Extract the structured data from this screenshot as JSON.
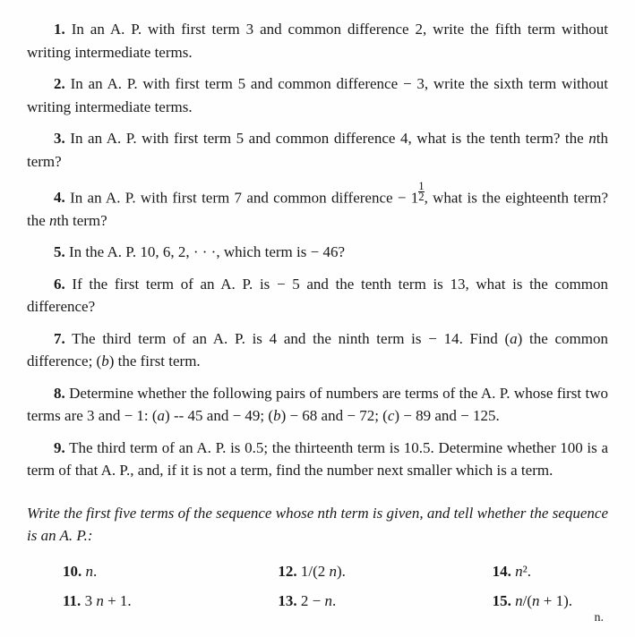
{
  "problems": {
    "p1": {
      "num": "1.",
      "text": "In an A. P. with first term 3 and common difference 2, write the fifth term without writing intermediate terms."
    },
    "p2": {
      "num": "2.",
      "text": "In an A. P. with first term 5 and common difference − 3, write the sixth term without writing intermediate terms."
    },
    "p3": {
      "num": "3.",
      "prefix": "In an A. P. with first term 5 and common difference 4, what is the tenth term?  the ",
      "nthword": "n",
      "suffix": "th term?"
    },
    "p4": {
      "num": "4.",
      "prefix": "In an A. P. with first term 7 and common difference − 1",
      "half_n": "1",
      "half_d": "2",
      "mid": ", what is the eighteenth term?  the ",
      "nthword": "n",
      "suffix": "th term?"
    },
    "p5": {
      "num": "5.",
      "text": "In the A. P. 10, 6, 2, · · ·, which term is − 46?"
    },
    "p6": {
      "num": "6.",
      "text": "If the first term of an A. P. is − 5 and the tenth term is 13, what is the common difference?"
    },
    "p7": {
      "num": "7.",
      "prefix": "The third term of an A. P. is 4 and the ninth term is − 14. Find (",
      "alab": "a",
      "mid": ") the common difference;  (",
      "blab": "b",
      "suffix": ") the first term."
    },
    "p8": {
      "num": "8.",
      "pre": "Determine whether the following pairs of numbers are terms of the A. P. whose first two terms are 3 and − 1:  (",
      "a": "a",
      "t1": ") -- 45 and − 49; (",
      "b": "b",
      "t2": ")  − 68 and − 72;  (",
      "c": "c",
      "t3": ")  − 89 and − 125."
    },
    "p9": {
      "num": "9.",
      "text": "The third term of an A. P. is 0.5;  the thirteenth term is 10.5. Determine whether 100 is a term of that A. P., and, if it is not a term, find the number next smaller which is a term."
    }
  },
  "instruction": {
    "pre": "Write the first five terms of the sequence whose ",
    "n": "n",
    "mid": "th term is given, and tell whether the sequence is an A. P.:"
  },
  "short": {
    "p10": {
      "num": "10.",
      "var": "n",
      "suffix": "."
    },
    "p11": {
      "num": "11.",
      "pre": "3 ",
      "var": "n",
      "suffix": " + 1."
    },
    "p12": {
      "num": "12.",
      "pre": "1/(2 ",
      "var": "n",
      "suffix": ")."
    },
    "p13": {
      "num": "13.",
      "pre": "2 − ",
      "var": "n",
      "suffix": "."
    },
    "p14": {
      "num": "14.",
      "var": "n",
      "suffix": "²."
    },
    "p15": {
      "num": "15.",
      "var1": "n",
      "mid": "/(",
      "var2": "n",
      "suffix": " + 1)."
    }
  },
  "marginal": "n."
}
